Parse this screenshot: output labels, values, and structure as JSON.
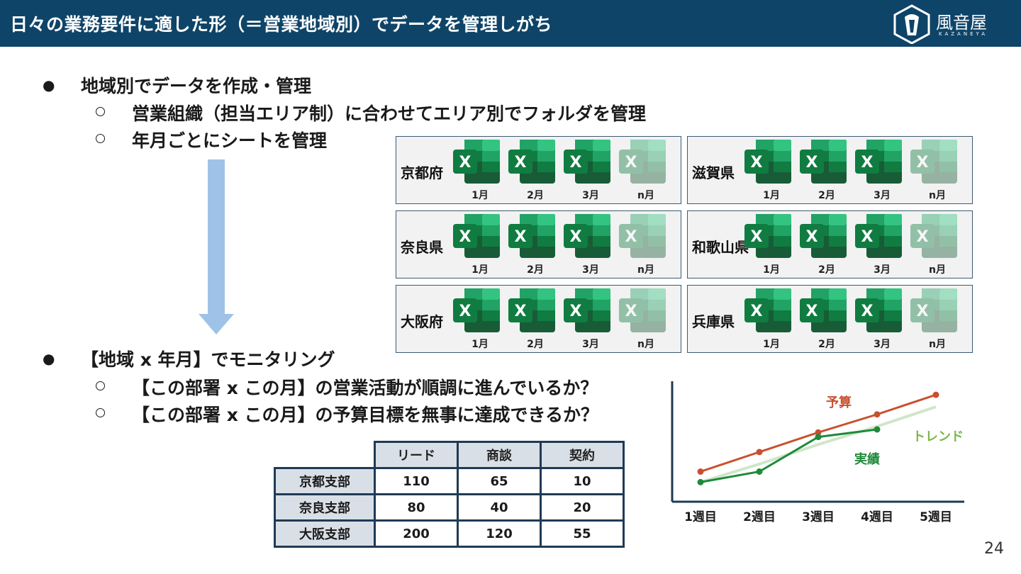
{
  "header": {
    "title": "日々の業務要件に適した形（＝営業地域別）でデータを管理しがち"
  },
  "logo": {
    "name": "風音屋",
    "sub": "KAZANEYA"
  },
  "bullets": {
    "b1": "地域別でデータを作成・管理",
    "b1_sub1": "営業組織（担当エリア制）に合わせてエリア別でフォルダを管理",
    "b1_sub2": "年月ごとにシートを管理",
    "b2": "【地域 x 年月】でモニタリング",
    "b2_sub1": "【この部署 x この月】の営業活動が順調に進んでいるか？",
    "b2_sub2": "【この部署 x この月】の予算目標を無事に達成できるか？"
  },
  "regions": [
    {
      "name": "京都府",
      "months": [
        "1月",
        "2月",
        "3月",
        "n月"
      ]
    },
    {
      "name": "滋賀県",
      "months": [
        "1月",
        "2月",
        "3月",
        "n月"
      ]
    },
    {
      "name": "奈良県",
      "months": [
        "1月",
        "2月",
        "3月",
        "n月"
      ]
    },
    {
      "name": "和歌山県",
      "months": [
        "1月",
        "2月",
        "3月",
        "n月"
      ]
    },
    {
      "name": "大阪府",
      "months": [
        "1月",
        "2月",
        "3月",
        "n月"
      ]
    },
    {
      "name": "兵庫県",
      "months": [
        "1月",
        "2月",
        "3月",
        "n月"
      ]
    }
  ],
  "excel_icon_letter": "X",
  "table": {
    "headers": [
      "リード",
      "商談",
      "契約"
    ],
    "rows": [
      {
        "label": "京都支部",
        "values": [
          "110",
          "65",
          "10"
        ]
      },
      {
        "label": "奈良支部",
        "values": [
          "80",
          "40",
          "20"
        ]
      },
      {
        "label": "大阪支部",
        "values": [
          "200",
          "120",
          "55"
        ]
      }
    ]
  },
  "chart_data": {
    "type": "line",
    "categories": [
      "1週目",
      "2週目",
      "3週目",
      "4週目",
      "5週目"
    ],
    "series": [
      {
        "name": "予算",
        "values": [
          2,
          3.3,
          4.6,
          5.8,
          7.1
        ],
        "color": "#c8502e"
      },
      {
        "name": "実績",
        "values": [
          1.3,
          2,
          4.3,
          4.8,
          null
        ],
        "color": "#1f8a3a"
      },
      {
        "name": "トレンド",
        "values": [
          1.3,
          2.5,
          3.8,
          5.0,
          6.3
        ],
        "color": "#cfe6c8"
      }
    ],
    "ylim": [
      0,
      8
    ],
    "grid": false,
    "legend": "inline labels"
  },
  "page_number": "24"
}
